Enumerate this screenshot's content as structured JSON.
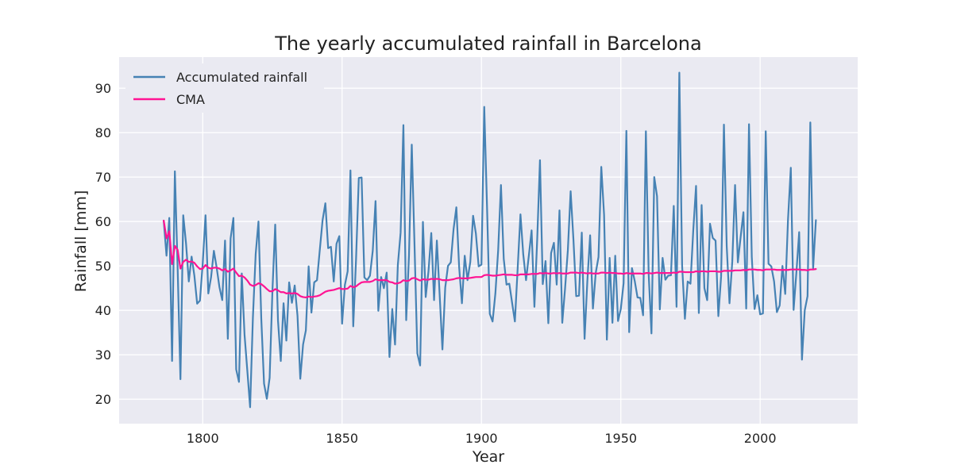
{
  "chart_data": {
    "type": "line",
    "title": "The yearly accumulated rainfall in Barcelona",
    "xlabel": "Year",
    "ylabel": "Rainfall [mm]",
    "xlim": [
      1770,
      2035
    ],
    "ylim": [
      14.5,
      97.0
    ],
    "xticks": [
      1800,
      1850,
      1900,
      1950,
      2000
    ],
    "yticks": [
      20,
      30,
      40,
      50,
      60,
      70,
      80,
      90
    ],
    "grid": true,
    "legend_position": "top-left",
    "background_color": "#eaeaf2",
    "series": [
      {
        "name": "Accumulated rainfall",
        "color": "#4682b4",
        "x_start": 1786,
        "values": [
          60.2,
          52.3,
          60.8,
          28.6,
          71.3,
          49.4,
          24.5,
          61.4,
          55.1,
          46.5,
          52.1,
          47.8,
          41.5,
          42.2,
          50.6,
          61.4,
          43.8,
          47.5,
          53.4,
          49.6,
          45.2,
          42.3,
          55.7,
          33.6,
          56.2,
          60.8,
          26.7,
          23.9,
          48.3,
          34.5,
          26.4,
          18.2,
          38.4,
          52.7,
          60.0,
          38.2,
          23.5,
          20.1,
          24.8,
          44.3,
          59.3,
          37.7,
          28.6,
          41.6,
          33.2,
          46.3,
          41.7,
          45.6,
          38.8,
          24.6,
          32.3,
          35.5,
          49.9,
          39.5,
          46.3,
          46.8,
          53.6,
          60.3,
          64.1,
          54.0,
          54.3,
          46.5,
          55.0,
          56.7,
          37.0,
          45.7,
          48.8,
          71.5,
          36.4,
          51.4,
          69.8,
          69.9,
          47.4,
          46.8,
          47.8,
          53.4,
          64.6,
          39.9,
          47.5,
          45.0,
          48.5,
          29.5,
          40.3,
          32.3,
          50.2,
          57.5,
          81.7,
          37.8,
          52.3,
          77.3,
          54.4,
          30.3,
          27.6,
          59.9,
          43.0,
          48.8,
          57.4,
          42.3,
          55.7,
          43.6,
          31.2,
          45.1,
          50.0,
          50.8,
          58.3,
          63.2,
          49.7,
          41.6,
          52.3,
          46.8,
          50.9,
          61.3,
          57.3,
          49.9,
          50.3,
          85.8,
          63.4,
          39.2,
          37.5,
          43.8,
          53.5,
          68.2,
          51.6,
          45.8,
          46.0,
          41.7,
          37.5,
          49.5,
          61.6,
          52.6,
          46.8,
          52.3,
          58.0,
          40.8,
          55.9,
          73.8,
          45.9,
          51.1,
          37.1,
          52.9,
          55.2,
          45.8,
          62.5,
          37.2,
          44.9,
          53.5,
          66.8,
          56.0,
          43.2,
          43.3,
          57.5,
          33.6,
          46.6,
          56.9,
          40.4,
          48.4,
          52.0,
          72.3,
          61.5,
          33.4,
          51.8,
          37.2,
          52.3,
          37.6,
          40.3,
          46.1,
          80.4,
          35.1,
          49.5,
          46.6,
          42.9,
          42.8,
          38.9,
          80.3,
          48.2,
          34.8,
          70.0,
          65.7,
          40.2,
          51.8,
          46.9,
          47.8,
          47.9,
          63.5,
          40.8,
          93.5,
          50.1,
          38.1,
          46.5,
          46.0,
          58.0,
          68.0,
          39.4,
          63.7,
          45.0,
          42.3,
          59.5,
          56.3,
          55.7,
          38.7,
          47.7,
          81.8,
          54.5,
          41.6,
          51.0,
          68.2,
          50.8,
          56.5,
          62.1,
          40.4,
          81.9,
          52.0,
          40.3,
          43.4,
          39.1,
          39.3,
          80.3,
          50.5,
          49.9,
          46.5,
          39.6,
          41.1,
          50.0,
          43.7,
          60.5,
          72.1,
          40.1,
          48.5,
          57.6,
          28.9,
          40.0,
          43.2,
          82.3,
          49.4,
          60.3
        ]
      },
      {
        "name": "CMA",
        "color": "#ff1493",
        "x_start": 1786,
        "values": [
          60.2,
          56.2,
          57.8,
          50.4,
          54.5,
          53.6,
          49.4,
          50.9,
          51.4,
          50.9,
          51.0,
          50.7,
          49.9,
          49.3,
          49.4,
          50.2,
          49.6,
          49.4,
          49.6,
          49.6,
          49.4,
          49.0,
          49.3,
          48.7,
          49.0,
          49.4,
          48.5,
          47.7,
          47.8,
          47.4,
          46.7,
          45.8,
          45.5,
          45.7,
          46.1,
          45.9,
          45.4,
          44.8,
          44.3,
          44.3,
          44.8,
          44.5,
          44.1,
          44.1,
          43.8,
          43.9,
          43.8,
          43.9,
          43.7,
          43.2,
          43.0,
          42.9,
          43.1,
          43.0,
          43.1,
          43.2,
          43.4,
          43.8,
          44.2,
          44.4,
          44.5,
          44.6,
          44.8,
          45.0,
          44.8,
          44.8,
          44.9,
          45.5,
          45.2,
          45.4,
          45.9,
          46.3,
          46.4,
          46.4,
          46.4,
          46.6,
          47.0,
          46.8,
          46.8,
          46.8,
          46.8,
          46.4,
          46.3,
          46.0,
          46.1,
          46.3,
          46.8,
          46.6,
          46.7,
          47.2,
          47.3,
          47.0,
          46.7,
          47.0,
          46.9,
          46.9,
          47.1,
          47.0,
          47.1,
          47.0,
          46.8,
          46.8,
          46.8,
          46.9,
          47.0,
          47.2,
          47.3,
          47.2,
          47.2,
          47.2,
          47.3,
          47.4,
          47.5,
          47.5,
          47.5,
          47.9,
          48.0,
          47.9,
          47.8,
          47.8,
          47.9,
          48.0,
          48.1,
          48.0,
          48.0,
          48.0,
          47.9,
          47.9,
          48.1,
          48.1,
          48.1,
          48.1,
          48.2,
          48.2,
          48.2,
          48.4,
          48.3,
          48.4,
          48.3,
          48.3,
          48.4,
          48.3,
          48.4,
          48.3,
          48.3,
          48.3,
          48.5,
          48.5,
          48.5,
          48.4,
          48.5,
          48.4,
          48.3,
          48.4,
          48.3,
          48.3,
          48.3,
          48.5,
          48.5,
          48.4,
          48.5,
          48.4,
          48.4,
          48.3,
          48.3,
          48.2,
          48.4,
          48.3,
          48.3,
          48.3,
          48.3,
          48.3,
          48.2,
          48.4,
          48.4,
          48.3,
          48.4,
          48.5,
          48.4,
          48.4,
          48.4,
          48.4,
          48.4,
          48.5,
          48.4,
          48.7,
          48.7,
          48.6,
          48.6,
          48.6,
          48.6,
          48.8,
          48.7,
          48.8,
          48.8,
          48.7,
          48.8,
          48.8,
          48.8,
          48.7,
          48.7,
          48.9,
          48.9,
          48.9,
          48.9,
          49.0,
          49.0,
          49.0,
          49.1,
          49.0,
          49.2,
          49.2,
          49.2,
          49.1,
          49.1,
          49.0,
          49.2,
          49.2,
          49.2,
          49.2,
          49.1,
          49.1,
          49.1,
          49.1,
          49.1,
          49.2,
          49.2,
          49.2,
          49.2,
          49.1,
          49.1,
          49.0,
          49.2,
          49.2,
          49.3
        ]
      }
    ]
  }
}
